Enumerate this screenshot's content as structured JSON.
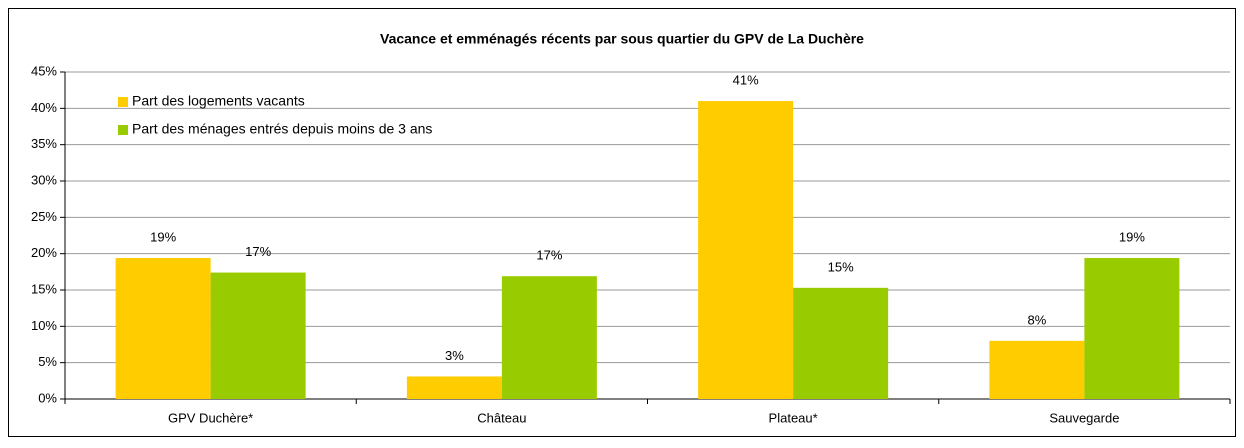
{
  "chart_data": {
    "type": "bar",
    "title": "Vacance et emménagés récents par sous quartier du GPV de La Duchère",
    "categories": [
      "GPV Duchère*",
      "Château",
      "Plateau*",
      "Sauvegarde"
    ],
    "series": [
      {
        "name": "Part des logements vacants",
        "color": "#ffcc00",
        "values": [
          19.4,
          3.1,
          41,
          8
        ],
        "value_labels": [
          "19%",
          "3%",
          "41%",
          "8%"
        ]
      },
      {
        "name": "Part des ménages entrés depuis moins de 3 ans",
        "color": "#99cc00",
        "values": [
          17.4,
          16.9,
          15.3,
          19.4
        ],
        "value_labels": [
          "17%",
          "17%",
          "15%",
          "19%"
        ]
      }
    ],
    "ylim": [
      0,
      45
    ],
    "yticks": [
      {
        "value": 0,
        "label": "0%"
      },
      {
        "value": 5,
        "label": "5%"
      },
      {
        "value": 10,
        "label": "10%"
      },
      {
        "value": 15,
        "label": "15%"
      },
      {
        "value": 20,
        "label": "20%"
      },
      {
        "value": 25,
        "label": "25%"
      },
      {
        "value": 30,
        "label": "30%"
      },
      {
        "value": 35,
        "label": "35%"
      },
      {
        "value": 40,
        "label": "40%"
      },
      {
        "value": 45,
        "label": "45%"
      }
    ],
    "grid": true,
    "legend": "top-left"
  }
}
